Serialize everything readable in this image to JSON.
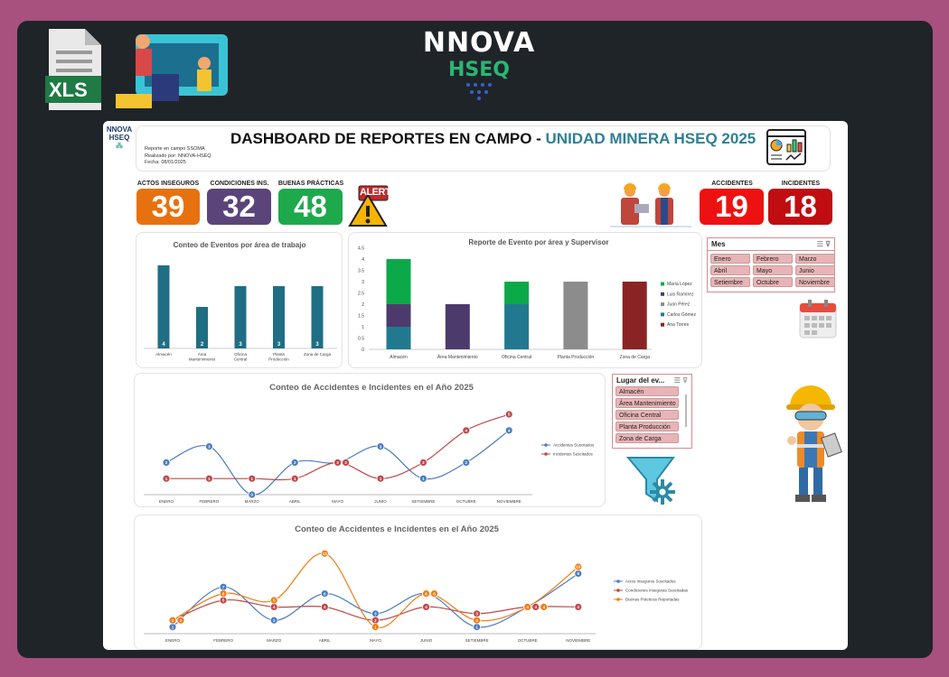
{
  "branding": {
    "logo_top": "NNOVA HSEQ",
    "xls_label": "XLS",
    "logo_small": "NNOVA HSEQ"
  },
  "header": {
    "title_main": "DASHBOARD DE REPORTES EN CAMPO - ",
    "title_accent": "UNIDAD MINERA HSEQ 2025",
    "line1": "Reporte en campo SSOMA",
    "line2": "Realizado por: NNOVA-HSEQ",
    "line3": "Fecha: 08/01/2025",
    "accent_color": "#2e7f96"
  },
  "kpis": [
    {
      "label": "ACTOS INSEGUROS",
      "value": "39",
      "color": "#e8710f"
    },
    {
      "label": "CONDICIONES INS.",
      "value": "32",
      "color": "#5a4479"
    },
    {
      "label": "BUENAS PRÁCTICAS",
      "value": "48",
      "color": "#1ea94d"
    },
    {
      "label": "ACCIDENTES",
      "value": "19",
      "color": "#ee1111"
    },
    {
      "label": "INCIDENTES",
      "value": "18",
      "color": "#c00d12"
    }
  ],
  "alert_text": "ALERT",
  "slicer_mes": {
    "title": "Mes",
    "items": [
      "Enero",
      "Febrero",
      "Marzo",
      "Abril",
      "Mayo",
      "Junio",
      "Setiembre",
      "Octubre",
      "Noviembre"
    ]
  },
  "slicer_lugar": {
    "title": "Lugar del ev...",
    "items": [
      "Almacén",
      "Área Mantenimiento",
      "Oficina Central",
      "Planta Producción",
      "Zona de Carga"
    ]
  },
  "chart_data": [
    {
      "type": "bar",
      "title": "Conteo de Eventos por área de trabajo",
      "categories": [
        "Almacén",
        "Área Mantenimiento",
        "Oficina Central",
        "Planta Producción",
        "Zona de Carga"
      ],
      "values": [
        4,
        2,
        3,
        3,
        3
      ],
      "color": "#1f6e84"
    },
    {
      "type": "bar",
      "stacked": true,
      "title": "Reporte de Evento por área y Supervisor",
      "categories": [
        "Almacén",
        "Área Mantenimiento",
        "Oficina Central",
        "Planta Producción",
        "Zona de Carga"
      ],
      "ylim": [
        0,
        4.5
      ],
      "yticks": [
        "0",
        "0.5",
        "1",
        "1.5",
        "2",
        "2.5",
        "3",
        "3.5",
        "4",
        "4.5"
      ],
      "legend": "right",
      "series": [
        {
          "name": "Carlos Gómez",
          "values": [
            1,
            0,
            2,
            0,
            0
          ],
          "color": "#22798f"
        },
        {
          "name": "Luis Ramírez",
          "values": [
            1,
            2,
            0,
            0,
            0
          ],
          "color": "#4d3a6c"
        },
        {
          "name": "María López",
          "values": [
            2,
            0,
            1,
            0,
            0
          ],
          "color": "#0ca94a"
        },
        {
          "name": "Juan Pérez",
          "values": [
            0,
            0,
            0,
            3,
            0
          ],
          "color": "#8c8c8c"
        },
        {
          "name": "Ana Torres",
          "values": [
            0,
            0,
            0,
            0,
            3
          ],
          "color": "#8a2424"
        }
      ],
      "legend_order": [
        "María López",
        "Luis Ramírez",
        "Juan Pérez",
        "Carlos Gómez",
        "Ana Torres"
      ]
    },
    {
      "type": "line",
      "smooth": true,
      "title": "Conteo de Accidentes e Incidentes en el Año 2025",
      "categories": [
        "ENERO",
        "FEBRERO",
        "MARZO",
        "ABRIL",
        "MAYO",
        "JUNIO",
        "SETIEMBRE",
        "OCTUBRE",
        "NOVIEMBRE"
      ],
      "legend": "right",
      "series": [
        {
          "name": "Accidentes Suscitados",
          "values": [
            2,
            3,
            0,
            2,
            2,
            3,
            1,
            2,
            4
          ],
          "color": "#4a7cc4"
        },
        {
          "name": "Incidentes Suscitados",
          "values": [
            1,
            1,
            1,
            1,
            2,
            1,
            2,
            4,
            5
          ],
          "color": "#c0474a"
        }
      ]
    },
    {
      "type": "line",
      "smooth": true,
      "title": "Conteo de Accidentes e Incidentes en el Año 2025",
      "categories": [
        "ENERO",
        "FEBRERO",
        "MARZO",
        "ABRIL",
        "MAYO",
        "JUNIO",
        "SETIEMBRE",
        "OCTUBRE",
        "NOVIEMBRE"
      ],
      "legend": "right",
      "series": [
        {
          "name": "Actos Inseguros Suscitados",
          "values": [
            1,
            7,
            2,
            6,
            3,
            6,
            1,
            4,
            9
          ],
          "color": "#4a7cc4"
        },
        {
          "name": "Condiciones Inseguras Suscitadas",
          "values": [
            2,
            5,
            4,
            4,
            2,
            4,
            3,
            4,
            4
          ],
          "color": "#c0474a"
        },
        {
          "name": "Buenas Prácticas Reportadas",
          "values": [
            2,
            6,
            5,
            12,
            1,
            6,
            2,
            4,
            10
          ],
          "color": "#ef7d14"
        }
      ]
    }
  ]
}
